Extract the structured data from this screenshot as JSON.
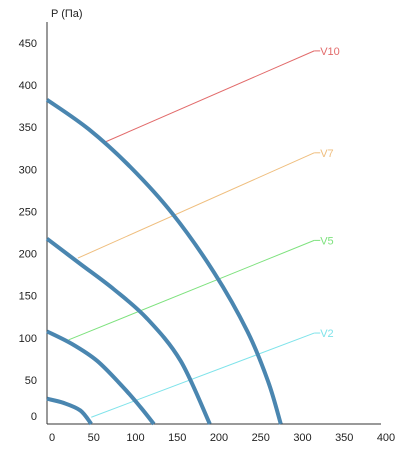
{
  "chart_data": {
    "type": "line",
    "ylabel": "P (Па)",
    "xlabel": "",
    "xlim": [
      0,
      400
    ],
    "ylim": [
      0,
      450
    ],
    "x_ticks": [
      0,
      50,
      100,
      150,
      200,
      250,
      300,
      350,
      400
    ],
    "y_ticks": [
      0,
      50,
      100,
      150,
      200,
      250,
      300,
      350,
      400,
      450
    ],
    "x_tick_labels": [
      "0",
      "50",
      "100",
      "150",
      "200",
      "250",
      "300",
      "350",
      "400"
    ],
    "y_tick_labels": [
      "0",
      "50",
      "100",
      "150",
      "200",
      "250",
      "300",
      "350",
      "400",
      "450"
    ],
    "grid": false,
    "curve_color": "#4a86b0",
    "fan_curves": [
      {
        "points": [
          [
            0,
            30
          ],
          [
            20,
            25
          ],
          [
            40,
            16
          ],
          [
            53,
            0
          ]
        ]
      },
      {
        "points": [
          [
            0,
            110
          ],
          [
            30,
            95
          ],
          [
            60,
            75
          ],
          [
            90,
            45
          ],
          [
            112,
            20
          ],
          [
            128,
            0
          ]
        ]
      },
      {
        "points": [
          [
            0,
            220
          ],
          [
            40,
            190
          ],
          [
            80,
            160
          ],
          [
            120,
            125
          ],
          [
            160,
            75
          ],
          [
            195,
            0
          ]
        ]
      },
      {
        "points": [
          [
            0,
            385
          ],
          [
            50,
            350
          ],
          [
            100,
            305
          ],
          [
            150,
            250
          ],
          [
            200,
            180
          ],
          [
            240,
            110
          ],
          [
            265,
            50
          ],
          [
            280,
            0
          ]
        ]
      }
    ],
    "series": [
      {
        "name": "V2",
        "color": "#7fe3ea",
        "points": [
          [
            53,
            8
          ],
          [
            320,
            108
          ]
        ]
      },
      {
        "name": "V5",
        "color": "#7ee27e",
        "points": [
          [
            26,
            100
          ],
          [
            320,
            218
          ]
        ]
      },
      {
        "name": "V7",
        "color": "#efbe7e",
        "points": [
          [
            37,
            197
          ],
          [
            320,
            322
          ]
        ]
      },
      {
        "name": "V10",
        "color": "#e26b6b",
        "points": [
          [
            70,
            335
          ],
          [
            320,
            443
          ]
        ]
      }
    ]
  }
}
